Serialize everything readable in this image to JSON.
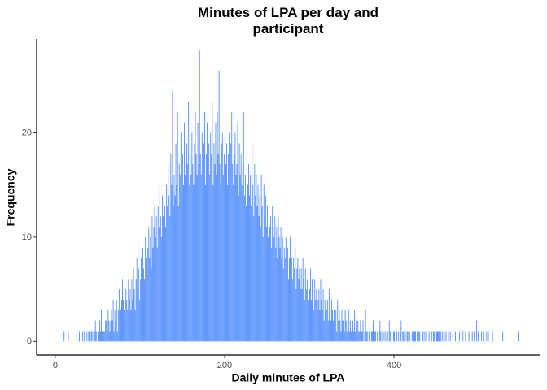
{
  "chart_data": {
    "type": "histogram",
    "title": "Minutes of LPA per day and participant",
    "x_label": "Daily minutes of LPA",
    "y_label": "Frequency",
    "color": "#4f8cff",
    "xlim": [
      -22,
      572
    ],
    "ylim": [
      -1.3,
      29
    ],
    "xticks": [
      0,
      200,
      400
    ],
    "yticks": [
      0,
      10,
      20
    ],
    "grid": false,
    "bins": [
      0,
      1,
      2,
      3,
      4,
      5,
      6,
      7,
      8,
      9,
      10,
      11,
      12,
      13,
      14,
      15,
      16,
      17,
      18,
      19,
      20,
      21,
      22,
      23,
      24,
      25,
      26,
      27,
      28,
      29,
      30,
      31,
      32,
      33,
      34,
      35,
      36,
      37,
      38,
      39,
      40,
      41,
      42,
      43,
      44,
      45,
      46,
      47,
      48,
      49,
      50,
      51,
      52,
      53,
      54,
      55,
      56,
      57,
      58,
      59,
      60,
      61,
      62,
      63,
      64,
      65,
      66,
      67,
      68,
      69,
      70,
      71,
      72,
      73,
      74,
      75,
      76,
      77,
      78,
      79,
      80,
      81,
      82,
      83,
      84,
      85,
      86,
      87,
      88,
      89,
      90,
      91,
      92,
      93,
      94,
      95,
      96,
      97,
      98,
      99,
      100,
      101,
      102,
      103,
      104,
      105,
      106,
      107,
      108,
      109,
      110,
      111,
      112,
      113,
      114,
      115,
      116,
      117,
      118,
      119,
      120,
      121,
      122,
      123,
      124,
      125,
      126,
      127,
      128,
      129,
      130,
      131,
      132,
      133,
      134,
      135,
      136,
      137,
      138,
      139,
      140,
      141,
      142,
      143,
      144,
      145,
      146,
      147,
      148,
      149,
      150,
      151,
      152,
      153,
      154,
      155,
      156,
      157,
      158,
      159,
      160,
      161,
      162,
      163,
      164,
      165,
      166,
      167,
      168,
      169,
      170,
      171,
      172,
      173,
      174,
      175,
      176,
      177,
      178,
      179,
      180,
      181,
      182,
      183,
      184,
      185,
      186,
      187,
      188,
      189,
      190,
      191,
      192,
      193,
      194,
      195,
      196,
      197,
      198,
      199,
      200,
      201,
      202,
      203,
      204,
      205,
      206,
      207,
      208,
      209,
      210,
      211,
      212,
      213,
      214,
      215,
      216,
      217,
      218,
      219,
      220,
      221,
      222,
      223,
      224,
      225,
      226,
      227,
      228,
      229,
      230,
      231,
      232,
      233,
      234,
      235,
      236,
      237,
      238,
      239,
      240,
      241,
      242,
      243,
      244,
      245,
      246,
      247,
      248,
      249,
      250,
      251,
      252,
      253,
      254,
      255,
      256,
      257,
      258,
      259,
      260,
      261,
      262,
      263,
      264,
      265,
      266,
      267,
      268,
      269,
      270,
      271,
      272,
      273,
      274,
      275,
      276,
      277,
      278,
      279,
      280,
      281,
      282,
      283,
      284,
      285,
      286,
      287,
      288,
      289,
      290,
      291,
      292,
      293,
      294,
      295,
      296,
      297,
      298,
      299,
      300,
      301,
      302,
      303,
      304,
      305,
      306,
      307,
      308,
      309,
      310,
      311,
      312,
      313,
      314,
      315,
      316,
      317,
      318,
      319,
      320,
      321,
      322,
      323,
      324,
      325,
      326,
      327,
      328,
      329,
      330,
      331,
      332,
      333,
      334,
      335,
      336,
      337,
      338,
      339,
      340,
      341,
      342,
      343,
      344,
      345,
      346,
      347,
      348,
      349,
      350,
      351,
      352,
      353,
      354,
      355,
      356,
      357,
      358,
      359,
      360,
      361,
      362,
      363,
      364,
      365,
      366,
      367,
      368,
      369,
      370,
      371,
      372,
      373,
      374,
      375,
      376,
      377,
      378,
      379,
      380,
      381,
      382,
      383,
      384,
      385,
      386,
      387,
      388,
      389,
      390,
      391,
      392,
      393,
      394,
      395,
      396,
      397,
      398,
      399,
      400,
      401,
      402,
      403,
      404,
      405,
      406,
      407,
      408,
      409,
      410,
      411,
      412,
      413,
      414,
      415,
      416,
      417,
      418,
      419,
      420,
      421,
      422,
      423,
      424,
      425,
      426,
      427,
      428,
      429,
      430,
      431,
      432,
      433,
      434,
      435,
      436,
      437,
      438,
      439,
      440,
      441,
      442,
      443,
      444,
      445,
      446,
      447,
      448,
      449,
      450,
      451,
      452,
      453,
      454,
      455,
      456,
      457,
      458,
      459,
      460,
      461,
      462,
      463,
      464,
      465,
      466,
      467,
      468,
      469,
      470,
      471,
      472,
      473,
      474,
      475,
      476,
      477,
      478,
      479,
      480,
      481,
      482,
      483,
      484,
      485,
      486,
      487,
      488,
      489,
      490,
      491,
      492,
      493,
      494,
      495,
      496,
      497,
      498,
      499,
      500,
      501,
      502,
      503,
      504,
      505,
      506,
      507,
      508,
      509,
      510,
      511,
      512,
      513,
      514,
      515,
      516,
      517,
      518,
      519,
      520,
      521,
      522,
      523,
      524,
      525,
      526,
      527,
      528,
      529,
      530,
      531,
      532,
      533,
      534,
      535,
      536,
      537,
      538,
      539,
      540,
      541,
      542,
      543,
      544,
      545,
      546,
      547,
      548,
      549,
      550
    ],
    "values": [
      0,
      0,
      0,
      0,
      1,
      0,
      0,
      0,
      0,
      0,
      1,
      0,
      0,
      0,
      0,
      1,
      0,
      0,
      0,
      0,
      0,
      0,
      0,
      0,
      0,
      1,
      0,
      0,
      1,
      0,
      1,
      0,
      1,
      0,
      1,
      0,
      0,
      1,
      0,
      1,
      1,
      0,
      1,
      1,
      0,
      1,
      1,
      2,
      1,
      0,
      1,
      1,
      2,
      1,
      3,
      1,
      2,
      1,
      1,
      2,
      2,
      1,
      3,
      2,
      1,
      2,
      3,
      2,
      4,
      1,
      3,
      2,
      4,
      1,
      3,
      5,
      2,
      3,
      4,
      6,
      4,
      3,
      2,
      5,
      4,
      3,
      6,
      4,
      5,
      3,
      6,
      4,
      7,
      5,
      3,
      6,
      8,
      5,
      7,
      4,
      6,
      8,
      5,
      9,
      7,
      6,
      10,
      8,
      7,
      9,
      11,
      8,
      10,
      7,
      12,
      9,
      11,
      13,
      10,
      12,
      9,
      13,
      11,
      15,
      12,
      10,
      14,
      12,
      16,
      13,
      11,
      15,
      13,
      17,
      14,
      12,
      18,
      15,
      24,
      13,
      16,
      14,
      19,
      15,
      22,
      13,
      17,
      16,
      20,
      14,
      18,
      15,
      21,
      16,
      14,
      19,
      17,
      23,
      15,
      18,
      16,
      20,
      17,
      15,
      19,
      22,
      18,
      16,
      21,
      17,
      28,
      18,
      16,
      20,
      17,
      19,
      22,
      15,
      18,
      21,
      17,
      19,
      16,
      20,
      18,
      23,
      15,
      19,
      17,
      21,
      16,
      22,
      18,
      26,
      17,
      15,
      19,
      20,
      16,
      18,
      21,
      17,
      19,
      15,
      18,
      20,
      16,
      19,
      22,
      17,
      15,
      18,
      20,
      16,
      17,
      21,
      14,
      19,
      16,
      18,
      15,
      17,
      22,
      14,
      16,
      13,
      18,
      15,
      17,
      14,
      16,
      13,
      19,
      15,
      12,
      17,
      14,
      16,
      13,
      15,
      12,
      14,
      11,
      16,
      13,
      10,
      15,
      12,
      14,
      11,
      13,
      10,
      14,
      11,
      12,
      9,
      13,
      11,
      10,
      12,
      9,
      11,
      8,
      12,
      10,
      9,
      11,
      8,
      10,
      7,
      9,
      8,
      10,
      7,
      9,
      6,
      8,
      10,
      7,
      8,
      6,
      8,
      7,
      9,
      5,
      7,
      8,
      6,
      7,
      5,
      7,
      5,
      8,
      6,
      4,
      7,
      5,
      6,
      4,
      6,
      5,
      7,
      4,
      6,
      5,
      3,
      6,
      4,
      5,
      3,
      4,
      5,
      3,
      6,
      4,
      3,
      5,
      2,
      4,
      3,
      3,
      4,
      2,
      5,
      3,
      2,
      4,
      3,
      2,
      3,
      2,
      3,
      1,
      4,
      2,
      3,
      2,
      1,
      3,
      2,
      2,
      1,
      3,
      2,
      1,
      2,
      3,
      1,
      2,
      1,
      1,
      2,
      1,
      3,
      1,
      2,
      1,
      2,
      1,
      1,
      2,
      1,
      1,
      2,
      0,
      1,
      3,
      1,
      1,
      0,
      1,
      2,
      0,
      1,
      1,
      2,
      0,
      1,
      1,
      0,
      1,
      0,
      1,
      2,
      1,
      0,
      1,
      1,
      0,
      1,
      0,
      1,
      1,
      0,
      2,
      1,
      0,
      1,
      0,
      1,
      1,
      0,
      1,
      1,
      0,
      1,
      0,
      1,
      2,
      0,
      1,
      1,
      0,
      1,
      0,
      1,
      1,
      0,
      1,
      0,
      0,
      1,
      1,
      0,
      1,
      1,
      0,
      1,
      0,
      1,
      1,
      0,
      0,
      1,
      1,
      0,
      1,
      0,
      1,
      0,
      0,
      1,
      0,
      0,
      1,
      0,
      1,
      1,
      0,
      0,
      1,
      1,
      1,
      1,
      0,
      1,
      0,
      1,
      0,
      1,
      0,
      1,
      0,
      0,
      1,
      0,
      1,
      0,
      0,
      1,
      0,
      0,
      1,
      0,
      1,
      0,
      0,
      1,
      0,
      0,
      0,
      1,
      0,
      0,
      1,
      0,
      0,
      0,
      1,
      0,
      0,
      0,
      1,
      0,
      1,
      0,
      0,
      2,
      0,
      1,
      0,
      0,
      0,
      1,
      0,
      1,
      0,
      0,
      0,
      1,
      0,
      1,
      0,
      0,
      0,
      0,
      1,
      0,
      0,
      0,
      0,
      0,
      0,
      0,
      0,
      0,
      0,
      0,
      1,
      0,
      0,
      0,
      0,
      0,
      0,
      0,
      0,
      0,
      0,
      0,
      0,
      0,
      0,
      0,
      0,
      0,
      1,
      1,
      0,
      0
    ]
  }
}
